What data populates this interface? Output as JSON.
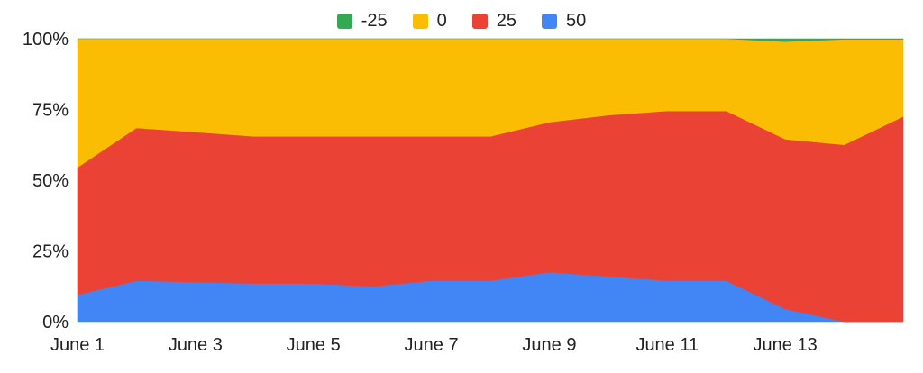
{
  "chart_data": {
    "type": "area",
    "stacking": "percent",
    "title": "",
    "xlabel": "",
    "ylabel": "",
    "legend_position": "top",
    "grid": false,
    "x": [
      "June 1",
      "June 2",
      "June 3",
      "June 4",
      "June 5",
      "June 6",
      "June 7",
      "June 8",
      "June 9",
      "June 10",
      "June 11",
      "June 12",
      "June 13",
      "June 14",
      "June 15"
    ],
    "x_tick_labels": [
      "June 1",
      "June 3",
      "June 5",
      "June 7",
      "June 9",
      "June 11",
      "June 13"
    ],
    "y_tick_labels": [
      "0%",
      "25%",
      "50%",
      "75%",
      "100%"
    ],
    "ylim": [
      0,
      100
    ],
    "series": [
      {
        "name": "50",
        "color": "#4285f4",
        "values": [
          9.5,
          14.5,
          14,
          13.5,
          13.5,
          12.5,
          14.5,
          14.5,
          17.5,
          16,
          14.5,
          14.5,
          4.5,
          0,
          0
        ]
      },
      {
        "name": "25",
        "color": "#ea4335",
        "values": [
          45,
          54,
          53,
          52,
          52,
          53,
          51,
          51,
          53,
          57,
          60,
          60,
          60,
          62.5,
          72.5
        ]
      },
      {
        "name": "0",
        "color": "#fbbc04",
        "values": [
          45.5,
          31.5,
          33,
          34.5,
          34.5,
          34.5,
          34.5,
          34.5,
          29.5,
          27,
          25.5,
          25.5,
          34.5,
          37.3,
          27.3
        ]
      },
      {
        "name": "-25",
        "color": "#34a853",
        "values": [
          0,
          0,
          0,
          0,
          0,
          0,
          0,
          0,
          0,
          0,
          0,
          0,
          1,
          0.2,
          0.2
        ]
      }
    ],
    "legend_order": [
      "-25",
      "0",
      "25",
      "50"
    ]
  }
}
